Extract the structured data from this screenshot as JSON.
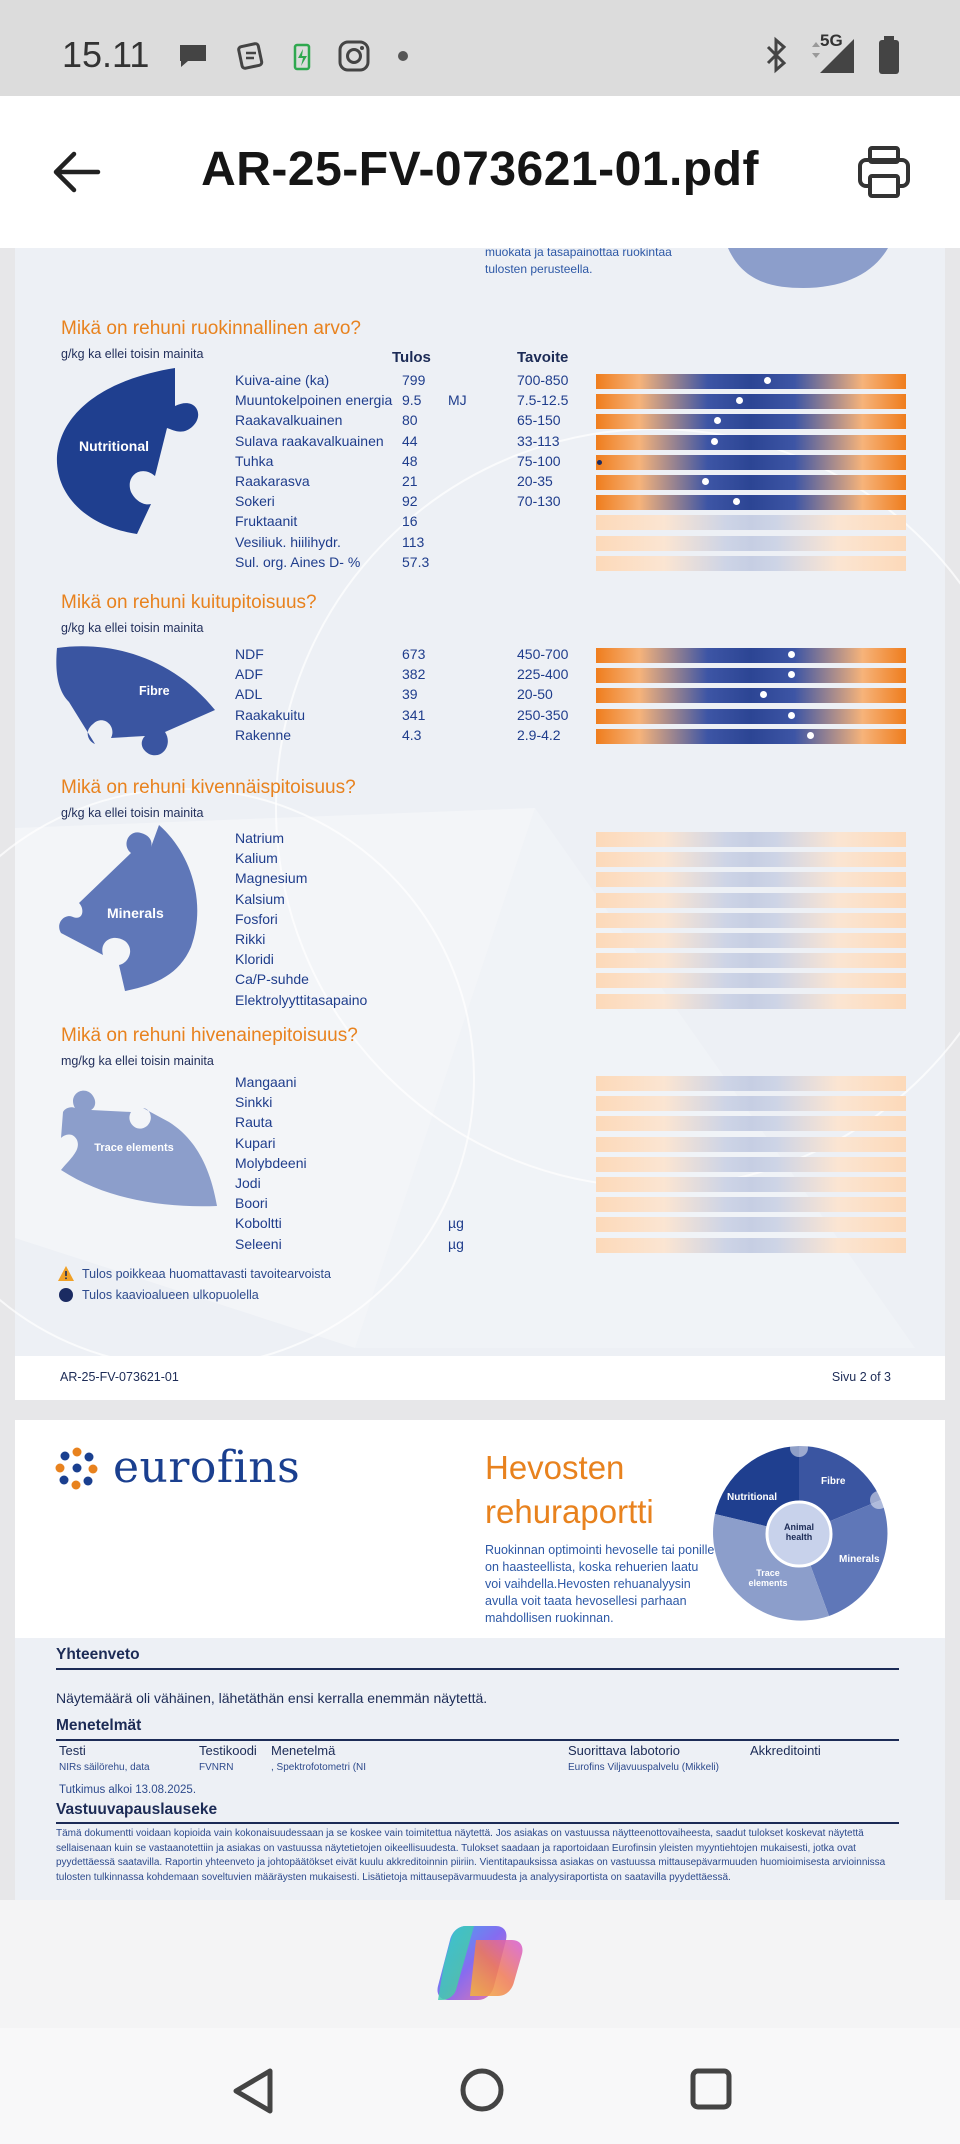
{
  "status_bar": {
    "time": "15.11",
    "network": "5G",
    "icons": [
      "chat-bubble-icon",
      "messages-icon",
      "battery-charging-icon",
      "instagram-icon",
      "dot-icon",
      "bluetooth-icon",
      "signal-icon",
      "battery-icon"
    ]
  },
  "app_bar": {
    "title": "AR-25-FV-073621-01.pdf",
    "back_icon": "arrow-left-icon",
    "print_icon": "printer-icon"
  },
  "page2": {
    "top_snippet": [
      "muokata ja tasapainottaa ruokintaa",
      "tulosten perusteella."
    ],
    "columns": {
      "result": "Tulos",
      "target": "Tavoite"
    },
    "sections": [
      {
        "title": "Mikä on rehuni ruokinnallinen arvo?",
        "unit_note": "g/kg ka ellei toisin mainita",
        "puzzle_label": "Nutritional",
        "rows": [
          {
            "label": "Kuiva-aine (ka)",
            "value": "799",
            "unit": "",
            "target": "700-850",
            "marker": 0.55,
            "bar": "full"
          },
          {
            "label": "Muuntokelpoinen energia",
            "value": "9.5",
            "unit": "MJ",
            "target": "7.5-12.5",
            "marker": 0.46,
            "bar": "full"
          },
          {
            "label": "Raakavalkuainen",
            "value": "80",
            "unit": "",
            "target": "65-150",
            "marker": 0.39,
            "bar": "full"
          },
          {
            "label": "Sulava raakavalkuainen",
            "value": "44",
            "unit": "",
            "target": "33-113",
            "marker": 0.38,
            "bar": "full"
          },
          {
            "label": "Tuhka",
            "value": "48",
            "unit": "",
            "target": "75-100",
            "marker": 0.0,
            "bar": "full",
            "out_of_range": true
          },
          {
            "label": "Raakarasva",
            "value": "21",
            "unit": "",
            "target": "20-35",
            "marker": 0.35,
            "bar": "full"
          },
          {
            "label": "Sokeri",
            "value": "92",
            "unit": "",
            "target": "70-130",
            "marker": 0.45,
            "bar": "full"
          },
          {
            "label": "Fruktaanit",
            "value": "16",
            "unit": "",
            "target": "",
            "bar": "pale"
          },
          {
            "label": "Vesiliuk. hiilihydr.",
            "value": "113",
            "unit": "",
            "target": "",
            "bar": "pale"
          },
          {
            "label": "Sul. org. Aines D- %",
            "value": "57.3",
            "unit": "",
            "target": "",
            "bar": "pale"
          }
        ]
      },
      {
        "title": "Mikä on rehuni kuitupitoisuus?",
        "unit_note": "g/kg ka ellei toisin mainita",
        "puzzle_label": "Fibre",
        "rows": [
          {
            "label": "NDF",
            "value": "673",
            "unit": "",
            "target": "450-700",
            "marker": 0.63,
            "bar": "full"
          },
          {
            "label": "ADF",
            "value": "382",
            "unit": "",
            "target": "225-400",
            "marker": 0.63,
            "bar": "full"
          },
          {
            "label": "ADL",
            "value": "39",
            "unit": "",
            "target": "20-50",
            "marker": 0.54,
            "bar": "full"
          },
          {
            "label": "Raakakuitu",
            "value": "341",
            "unit": "",
            "target": "250-350",
            "marker": 0.63,
            "bar": "full"
          },
          {
            "label": "Rakenne",
            "value": "4.3",
            "unit": "",
            "target": "2.9-4.2",
            "marker": 0.69,
            "bar": "full"
          }
        ]
      },
      {
        "title": "Mikä on rehuni kivennäispitoisuus?",
        "unit_note": "g/kg ka ellei toisin mainita",
        "puzzle_label": "Minerals",
        "rows": [
          {
            "label": "Natrium",
            "value": "",
            "unit": "",
            "target": "",
            "bar": "pale"
          },
          {
            "label": "Kalium",
            "value": "",
            "unit": "",
            "target": "",
            "bar": "pale"
          },
          {
            "label": "Magnesium",
            "value": "",
            "unit": "",
            "target": "",
            "bar": "pale"
          },
          {
            "label": "Kalsium",
            "value": "",
            "unit": "",
            "target": "",
            "bar": "pale"
          },
          {
            "label": "Fosfori",
            "value": "",
            "unit": "",
            "target": "",
            "bar": "pale"
          },
          {
            "label": "Rikki",
            "value": "",
            "unit": "",
            "target": "",
            "bar": "pale"
          },
          {
            "label": "Kloridi",
            "value": "",
            "unit": "",
            "target": "",
            "bar": "pale"
          },
          {
            "label": "Ca/P-suhde",
            "value": "",
            "unit": "",
            "target": "",
            "bar": "pale"
          },
          {
            "label": "Elektrolyyttitasapaino",
            "value": "",
            "unit": "",
            "target": "",
            "bar": "pale"
          }
        ]
      },
      {
        "title": "Mikä on rehuni hivenainepitoisuus?",
        "unit_note": "mg/kg ka ellei toisin mainita",
        "puzzle_label": "Trace elements",
        "rows": [
          {
            "label": "Mangaani",
            "value": "",
            "unit": "",
            "target": "",
            "bar": "pale"
          },
          {
            "label": "Sinkki",
            "value": "",
            "unit": "",
            "target": "",
            "bar": "pale"
          },
          {
            "label": "Rauta",
            "value": "",
            "unit": "",
            "target": "",
            "bar": "pale"
          },
          {
            "label": "Kupari",
            "value": "",
            "unit": "",
            "target": "",
            "bar": "pale"
          },
          {
            "label": "Molybdeeni",
            "value": "",
            "unit": "",
            "target": "",
            "bar": "pale"
          },
          {
            "label": "Jodi",
            "value": "",
            "unit": "",
            "target": "",
            "bar": "pale"
          },
          {
            "label": "Boori",
            "value": "",
            "unit": "",
            "target": "",
            "bar": "pale"
          },
          {
            "label": "Koboltti",
            "value": "",
            "unit": "µg",
            "target": "",
            "bar": "pale"
          },
          {
            "label": "Seleeni",
            "value": "",
            "unit": "µg",
            "target": "",
            "bar": "pale"
          }
        ]
      }
    ],
    "legend": [
      {
        "icon": "warning-triangle-icon",
        "text": "Tulos poikkeaa huomattavasti tavoitearvoista"
      },
      {
        "icon": "filled-circle-icon",
        "text": "Tulos kaavioalueen ulkopuolella"
      }
    ],
    "footer_left": "AR-25-FV-073621-01",
    "footer_right": "Sivu 2 of 3"
  },
  "page3": {
    "brand": "eurofins",
    "heading_line1": "Hevosten",
    "heading_line2": "rehuraportti",
    "intro": "Ruokinnan optimointi hevoselle tai ponille on haasteellista, koska rehuerien laatu voi vaihdella.Hevosten rehuanalyysin avulla voit taata hevosellesi parhaan mahdollisen ruokinnan.",
    "puzzle_labels": {
      "nutritional": "Nutritional",
      "fibre": "Fibre",
      "minerals": "Minerals",
      "trace": "Trace elements",
      "center": "Animal health"
    },
    "summary_title": "Yhteenveto",
    "summary_text": "Näytemäärä oli vähäinen, lähetäthän ensi kerralla enemmän näytettä.",
    "methods_title": "Menetelmät",
    "methods_headers": {
      "test": "Testi",
      "code": "Testikoodi",
      "method": "Menetelmä",
      "lab": "Suorittava labotorio",
      "accreditation": "Akkreditointi"
    },
    "methods_row": {
      "test": "NIRs säilörehu, data",
      "code": "FVNRN",
      "method": ", Spektrofotometri (NI",
      "lab": "Eurofins Viljavuuspalvelu (Mikkeli)",
      "accreditation": ""
    },
    "study_started": "Tutkimus alkoi 13.08.2025.",
    "disclaimer_title": "Vastuuvapauslauseke",
    "disclaimer": "Tämä dokumentti voidaan kopioida vain kokonaisuudessaan ja se koskee vain toimitettua näytettä. Jos asiakas on vastuussa näytteenottovaiheesta, saadut tulokset koskevat näytettä sellaisenaan kuin se vastaanotettiin ja asiakas on vastuussa näytetietojen oikeellisuudesta. Tulokset saadaan ja raportoidaan Eurofinsin yleisten myyntiehtojen mukaisesti, jotka ovat pyydettäessä saatavilla. Raportin yhteenveto ja johtopäätökset eivät kuulu akkreditoinnin piiriin. Vientitapauksissa asiakas on vastuussa mittausepävarmuuden huomioimisesta arvioinnissa tulosten tulkinnassa kohdemaan soveltuvien määräysten mukaisesti. Lisätietoja mittausepävarmuudesta ja analyysiraportista on saatavilla pyydettäessä."
  },
  "colors": {
    "orange": "#e8821e",
    "navy": "#1c2b56",
    "blue": "#2c4594"
  },
  "bottom": {
    "copilot_icon": "copilot-icon",
    "nav": [
      "back-triangle-icon",
      "home-circle-icon",
      "recents-square-icon"
    ]
  }
}
